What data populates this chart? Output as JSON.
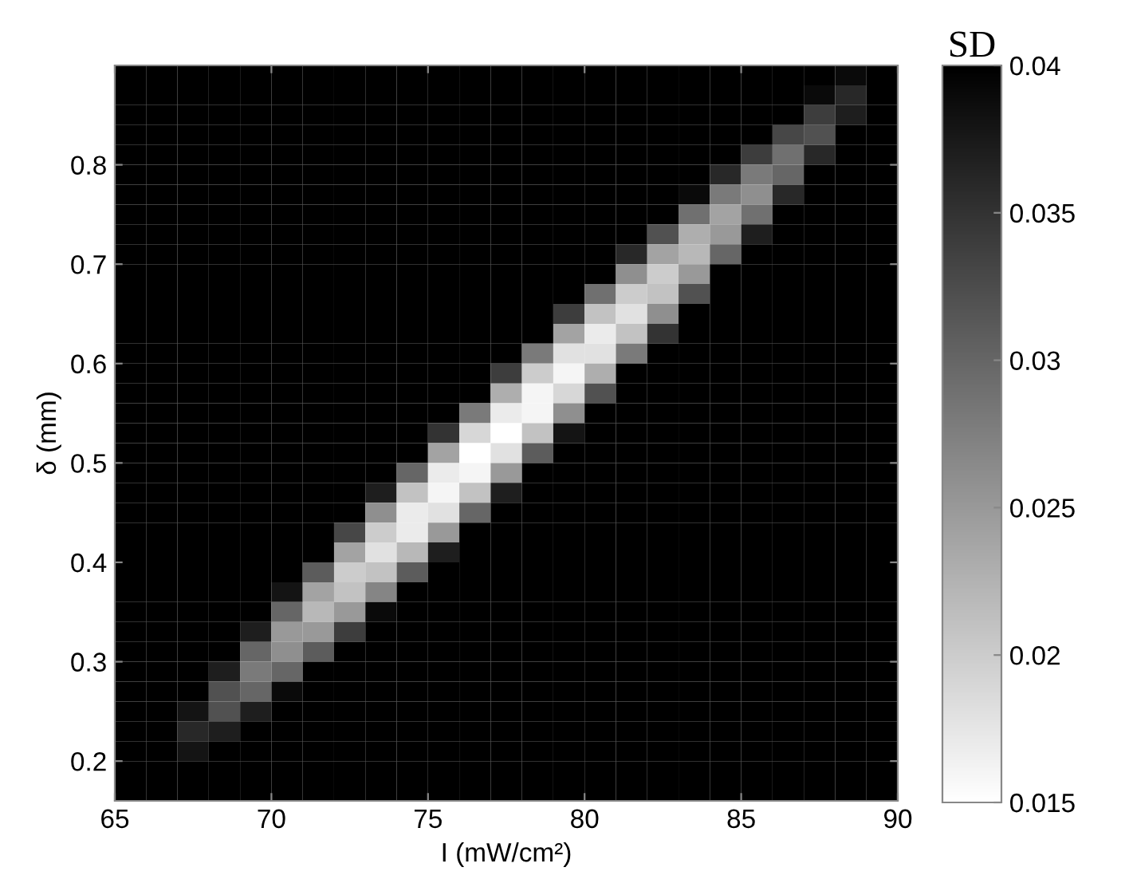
{
  "chart_data": {
    "type": "heatmap",
    "xlabel": "I (mW/cm²)",
    "ylabel": "δ (mm)",
    "clabel": "SD",
    "x": [
      65.5,
      66.5,
      67.5,
      68.5,
      69.5,
      70.5,
      71.5,
      72.5,
      73.5,
      74.5,
      75.5,
      76.5,
      77.5,
      78.5,
      79.5,
      80.5,
      81.5,
      82.5,
      83.5,
      84.5,
      85.5,
      86.5,
      87.5,
      88.5,
      89.5
    ],
    "y": [
      0.89,
      0.87,
      0.85,
      0.83,
      0.81,
      0.79,
      0.77,
      0.75,
      0.73,
      0.71,
      0.69,
      0.67,
      0.65,
      0.63,
      0.61,
      0.59,
      0.57,
      0.55,
      0.53,
      0.51,
      0.49,
      0.47,
      0.45,
      0.43,
      0.41,
      0.39,
      0.37,
      0.35,
      0.33,
      0.31,
      0.29,
      0.27,
      0.25,
      0.23,
      0.21,
      0.19,
      0.17
    ],
    "cells": [
      [
        0.04,
        0.04,
        0.04,
        0.04,
        0.04,
        0.04,
        0.04,
        0.04,
        0.04,
        0.04,
        0.04,
        0.04,
        0.04,
        0.04,
        0.04,
        0.04,
        0.04,
        0.04,
        0.04,
        0.04,
        0.04,
        0.04,
        0.04,
        0.039,
        0.04
      ],
      [
        0.04,
        0.04,
        0.04,
        0.04,
        0.04,
        0.04,
        0.04,
        0.04,
        0.04,
        0.04,
        0.04,
        0.04,
        0.04,
        0.04,
        0.04,
        0.04,
        0.04,
        0.04,
        0.04,
        0.04,
        0.04,
        0.04,
        0.039,
        0.036,
        0.04
      ],
      [
        0.04,
        0.04,
        0.04,
        0.04,
        0.04,
        0.04,
        0.04,
        0.04,
        0.04,
        0.04,
        0.04,
        0.04,
        0.04,
        0.04,
        0.04,
        0.04,
        0.04,
        0.04,
        0.04,
        0.04,
        0.04,
        0.04,
        0.034,
        0.037,
        0.04
      ],
      [
        0.04,
        0.04,
        0.04,
        0.04,
        0.04,
        0.04,
        0.04,
        0.04,
        0.04,
        0.04,
        0.04,
        0.04,
        0.04,
        0.04,
        0.04,
        0.04,
        0.04,
        0.04,
        0.04,
        0.04,
        0.04,
        0.033,
        0.032,
        0.04,
        0.04
      ],
      [
        0.04,
        0.04,
        0.04,
        0.04,
        0.04,
        0.04,
        0.04,
        0.04,
        0.04,
        0.04,
        0.04,
        0.04,
        0.04,
        0.04,
        0.04,
        0.04,
        0.04,
        0.04,
        0.04,
        0.04,
        0.034,
        0.029,
        0.036,
        0.04,
        0.04
      ],
      [
        0.04,
        0.04,
        0.04,
        0.04,
        0.04,
        0.04,
        0.04,
        0.04,
        0.04,
        0.04,
        0.04,
        0.04,
        0.04,
        0.04,
        0.04,
        0.04,
        0.04,
        0.04,
        0.04,
        0.036,
        0.028,
        0.03,
        0.04,
        0.04,
        0.04
      ],
      [
        0.04,
        0.04,
        0.04,
        0.04,
        0.04,
        0.04,
        0.04,
        0.04,
        0.04,
        0.04,
        0.04,
        0.04,
        0.04,
        0.04,
        0.04,
        0.04,
        0.04,
        0.04,
        0.039,
        0.028,
        0.026,
        0.036,
        0.04,
        0.04,
        0.04
      ],
      [
        0.04,
        0.04,
        0.04,
        0.04,
        0.04,
        0.04,
        0.04,
        0.04,
        0.04,
        0.04,
        0.04,
        0.04,
        0.04,
        0.04,
        0.04,
        0.04,
        0.04,
        0.04,
        0.029,
        0.024,
        0.029,
        0.04,
        0.04,
        0.04,
        0.04
      ],
      [
        0.04,
        0.04,
        0.04,
        0.04,
        0.04,
        0.04,
        0.04,
        0.04,
        0.04,
        0.04,
        0.04,
        0.04,
        0.04,
        0.04,
        0.04,
        0.04,
        0.04,
        0.032,
        0.023,
        0.025,
        0.037,
        0.04,
        0.04,
        0.04,
        0.04
      ],
      [
        0.04,
        0.04,
        0.04,
        0.04,
        0.04,
        0.04,
        0.04,
        0.04,
        0.04,
        0.04,
        0.04,
        0.04,
        0.04,
        0.04,
        0.04,
        0.04,
        0.036,
        0.024,
        0.022,
        0.03,
        0.04,
        0.04,
        0.04,
        0.04,
        0.04
      ],
      [
        0.04,
        0.04,
        0.04,
        0.04,
        0.04,
        0.04,
        0.04,
        0.04,
        0.04,
        0.04,
        0.04,
        0.04,
        0.04,
        0.04,
        0.04,
        0.04,
        0.026,
        0.02,
        0.025,
        0.04,
        0.04,
        0.04,
        0.04,
        0.04,
        0.04
      ],
      [
        0.04,
        0.04,
        0.04,
        0.04,
        0.04,
        0.04,
        0.04,
        0.04,
        0.04,
        0.04,
        0.04,
        0.04,
        0.04,
        0.04,
        0.04,
        0.029,
        0.02,
        0.021,
        0.032,
        0.04,
        0.04,
        0.04,
        0.04,
        0.04,
        0.04
      ],
      [
        0.04,
        0.04,
        0.04,
        0.04,
        0.04,
        0.04,
        0.04,
        0.04,
        0.04,
        0.04,
        0.04,
        0.04,
        0.04,
        0.04,
        0.034,
        0.021,
        0.018,
        0.026,
        0.04,
        0.04,
        0.04,
        0.04,
        0.04,
        0.04,
        0.04
      ],
      [
        0.04,
        0.04,
        0.04,
        0.04,
        0.04,
        0.04,
        0.04,
        0.04,
        0.04,
        0.04,
        0.04,
        0.04,
        0.04,
        0.04,
        0.024,
        0.017,
        0.021,
        0.035,
        0.04,
        0.04,
        0.04,
        0.04,
        0.04,
        0.04,
        0.04
      ],
      [
        0.04,
        0.04,
        0.04,
        0.04,
        0.04,
        0.04,
        0.04,
        0.04,
        0.04,
        0.04,
        0.04,
        0.04,
        0.04,
        0.028,
        0.018,
        0.018,
        0.028,
        0.04,
        0.04,
        0.04,
        0.04,
        0.04,
        0.04,
        0.04,
        0.04
      ],
      [
        0.04,
        0.04,
        0.04,
        0.04,
        0.04,
        0.04,
        0.04,
        0.04,
        0.04,
        0.04,
        0.04,
        0.04,
        0.034,
        0.02,
        0.016,
        0.023,
        0.04,
        0.04,
        0.04,
        0.04,
        0.04,
        0.04,
        0.04,
        0.04,
        0.04
      ],
      [
        0.04,
        0.04,
        0.04,
        0.04,
        0.04,
        0.04,
        0.04,
        0.04,
        0.04,
        0.04,
        0.04,
        0.04,
        0.023,
        0.016,
        0.019,
        0.032,
        0.04,
        0.04,
        0.04,
        0.04,
        0.04,
        0.04,
        0.04,
        0.04,
        0.04
      ],
      [
        0.04,
        0.04,
        0.04,
        0.04,
        0.04,
        0.04,
        0.04,
        0.04,
        0.04,
        0.04,
        0.04,
        0.028,
        0.017,
        0.016,
        0.026,
        0.04,
        0.04,
        0.04,
        0.04,
        0.04,
        0.04,
        0.04,
        0.04,
        0.04,
        0.04
      ],
      [
        0.04,
        0.04,
        0.04,
        0.04,
        0.04,
        0.04,
        0.04,
        0.04,
        0.04,
        0.04,
        0.035,
        0.019,
        0.015,
        0.021,
        0.038,
        0.04,
        0.04,
        0.04,
        0.04,
        0.04,
        0.04,
        0.04,
        0.04,
        0.04,
        0.04
      ],
      [
        0.04,
        0.04,
        0.04,
        0.04,
        0.04,
        0.04,
        0.04,
        0.04,
        0.04,
        0.04,
        0.024,
        0.015,
        0.018,
        0.031,
        0.04,
        0.04,
        0.04,
        0.04,
        0.04,
        0.04,
        0.04,
        0.04,
        0.04,
        0.04,
        0.04
      ],
      [
        0.04,
        0.04,
        0.04,
        0.04,
        0.04,
        0.04,
        0.04,
        0.04,
        0.04,
        0.03,
        0.017,
        0.016,
        0.025,
        0.04,
        0.04,
        0.04,
        0.04,
        0.04,
        0.04,
        0.04,
        0.04,
        0.04,
        0.04,
        0.04,
        0.04
      ],
      [
        0.04,
        0.04,
        0.04,
        0.04,
        0.04,
        0.04,
        0.04,
        0.04,
        0.037,
        0.021,
        0.016,
        0.021,
        0.037,
        0.04,
        0.04,
        0.04,
        0.04,
        0.04,
        0.04,
        0.04,
        0.04,
        0.04,
        0.04,
        0.04,
        0.04
      ],
      [
        0.04,
        0.04,
        0.04,
        0.04,
        0.04,
        0.04,
        0.04,
        0.04,
        0.026,
        0.017,
        0.018,
        0.03,
        0.04,
        0.04,
        0.04,
        0.04,
        0.04,
        0.04,
        0.04,
        0.04,
        0.04,
        0.04,
        0.04,
        0.04,
        0.04
      ],
      [
        0.04,
        0.04,
        0.04,
        0.04,
        0.04,
        0.04,
        0.04,
        0.033,
        0.02,
        0.017,
        0.025,
        0.04,
        0.04,
        0.04,
        0.04,
        0.04,
        0.04,
        0.04,
        0.04,
        0.04,
        0.04,
        0.04,
        0.04,
        0.04,
        0.04
      ],
      [
        0.04,
        0.04,
        0.04,
        0.04,
        0.04,
        0.04,
        0.04,
        0.024,
        0.018,
        0.022,
        0.037,
        0.04,
        0.04,
        0.04,
        0.04,
        0.04,
        0.04,
        0.04,
        0.04,
        0.04,
        0.04,
        0.04,
        0.04,
        0.04,
        0.04
      ],
      [
        0.04,
        0.04,
        0.04,
        0.04,
        0.04,
        0.04,
        0.031,
        0.02,
        0.021,
        0.031,
        0.04,
        0.04,
        0.04,
        0.04,
        0.04,
        0.04,
        0.04,
        0.04,
        0.04,
        0.04,
        0.04,
        0.04,
        0.04,
        0.04,
        0.04
      ],
      [
        0.04,
        0.04,
        0.04,
        0.04,
        0.04,
        0.038,
        0.024,
        0.021,
        0.027,
        0.04,
        0.04,
        0.04,
        0.04,
        0.04,
        0.04,
        0.04,
        0.04,
        0.04,
        0.04,
        0.04,
        0.04,
        0.04,
        0.04,
        0.04,
        0.04
      ],
      [
        0.04,
        0.04,
        0.04,
        0.04,
        0.04,
        0.03,
        0.022,
        0.025,
        0.039,
        0.04,
        0.04,
        0.04,
        0.04,
        0.04,
        0.04,
        0.04,
        0.04,
        0.04,
        0.04,
        0.04,
        0.04,
        0.04,
        0.04,
        0.04,
        0.04
      ],
      [
        0.04,
        0.04,
        0.04,
        0.04,
        0.037,
        0.025,
        0.025,
        0.034,
        0.04,
        0.04,
        0.04,
        0.04,
        0.04,
        0.04,
        0.04,
        0.04,
        0.04,
        0.04,
        0.04,
        0.04,
        0.04,
        0.04,
        0.04,
        0.04,
        0.04
      ],
      [
        0.04,
        0.04,
        0.04,
        0.04,
        0.03,
        0.026,
        0.031,
        0.04,
        0.04,
        0.04,
        0.04,
        0.04,
        0.04,
        0.04,
        0.04,
        0.04,
        0.04,
        0.04,
        0.04,
        0.04,
        0.04,
        0.04,
        0.04,
        0.04,
        0.04
      ],
      [
        0.04,
        0.04,
        0.04,
        0.037,
        0.028,
        0.03,
        0.04,
        0.04,
        0.04,
        0.04,
        0.04,
        0.04,
        0.04,
        0.04,
        0.04,
        0.04,
        0.04,
        0.04,
        0.04,
        0.04,
        0.04,
        0.04,
        0.04,
        0.04,
        0.04
      ],
      [
        0.04,
        0.04,
        0.04,
        0.032,
        0.03,
        0.039,
        0.04,
        0.04,
        0.04,
        0.04,
        0.04,
        0.04,
        0.04,
        0.04,
        0.04,
        0.04,
        0.04,
        0.04,
        0.04,
        0.04,
        0.04,
        0.04,
        0.04,
        0.04,
        0.04
      ],
      [
        0.04,
        0.04,
        0.038,
        0.032,
        0.037,
        0.04,
        0.04,
        0.04,
        0.04,
        0.04,
        0.04,
        0.04,
        0.04,
        0.04,
        0.04,
        0.04,
        0.04,
        0.04,
        0.04,
        0.04,
        0.04,
        0.04,
        0.04,
        0.04,
        0.04
      ],
      [
        0.04,
        0.04,
        0.036,
        0.037,
        0.04,
        0.04,
        0.04,
        0.04,
        0.04,
        0.04,
        0.04,
        0.04,
        0.04,
        0.04,
        0.04,
        0.04,
        0.04,
        0.04,
        0.04,
        0.04,
        0.04,
        0.04,
        0.04,
        0.04,
        0.04
      ],
      [
        0.04,
        0.04,
        0.038,
        0.04,
        0.04,
        0.04,
        0.04,
        0.04,
        0.04,
        0.04,
        0.04,
        0.04,
        0.04,
        0.04,
        0.04,
        0.04,
        0.04,
        0.04,
        0.04,
        0.04,
        0.04,
        0.04,
        0.04,
        0.04,
        0.04
      ],
      [
        0.04,
        0.04,
        0.04,
        0.04,
        0.04,
        0.04,
        0.04,
        0.04,
        0.04,
        0.04,
        0.04,
        0.04,
        0.04,
        0.04,
        0.04,
        0.04,
        0.04,
        0.04,
        0.04,
        0.04,
        0.04,
        0.04,
        0.04,
        0.04,
        0.04
      ],
      [
        0.04,
        0.04,
        0.04,
        0.04,
        0.04,
        0.04,
        0.04,
        0.04,
        0.04,
        0.04,
        0.04,
        0.04,
        0.04,
        0.04,
        0.04,
        0.04,
        0.04,
        0.04,
        0.04,
        0.04,
        0.04,
        0.04,
        0.04,
        0.04,
        0.04
      ]
    ],
    "xlim": [
      65,
      90
    ],
    "ylim": [
      0.16,
      0.9
    ],
    "xticks": [
      65,
      70,
      75,
      80,
      85,
      90
    ],
    "yticks": [
      0.2,
      0.3,
      0.4,
      0.5,
      0.6,
      0.7,
      0.8
    ],
    "clim": [
      0.015,
      0.04
    ],
    "cticks": [
      0.015,
      0.02,
      0.025,
      0.03,
      0.035,
      0.04
    ]
  }
}
